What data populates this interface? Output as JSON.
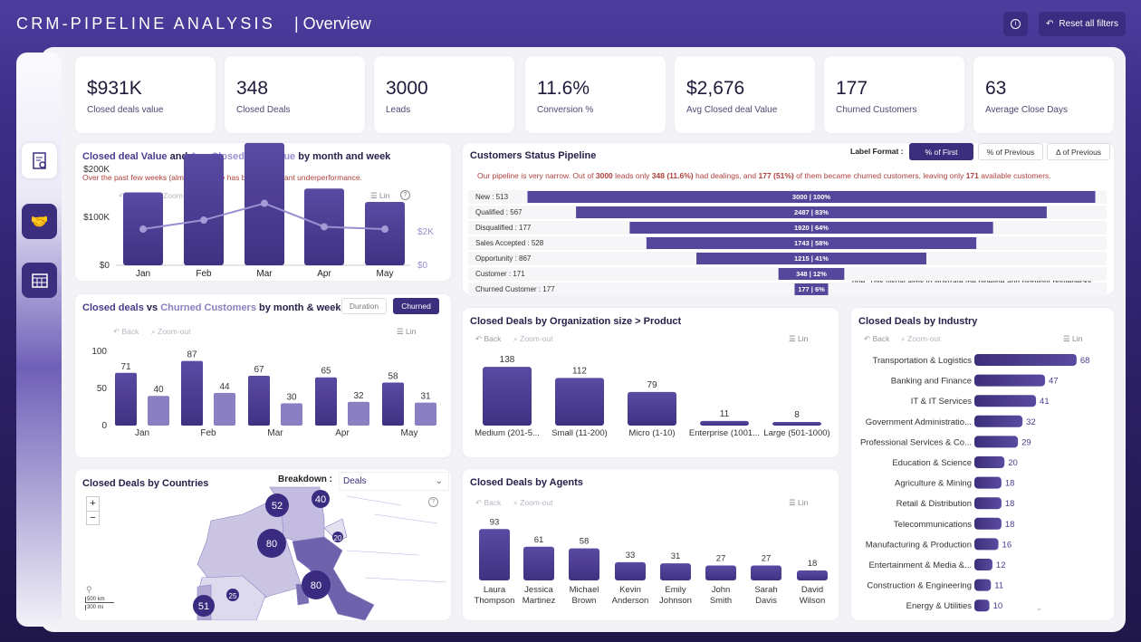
{
  "header": {
    "title": "CRM-PIPELINE ANALYSIS",
    "subtitle": "| Overview",
    "reset_label": "Reset all filters",
    "info_icon": "info-icon",
    "reset_icon": "undo-icon"
  },
  "sidebar": {
    "items": [
      {
        "icon": "report-icon",
        "active": true
      },
      {
        "icon": "handshake-icon",
        "active": false
      },
      {
        "icon": "calendar-icon",
        "active": false
      }
    ]
  },
  "kpis": [
    {
      "value": "$931K",
      "label": "Closed deals value"
    },
    {
      "value": "348",
      "label": "Closed Deals"
    },
    {
      "value": "3000",
      "label": "Leads"
    },
    {
      "value": "11.6%",
      "label": "Conversion %"
    },
    {
      "value": "$2,676",
      "label": "Avg Closed deal Value"
    },
    {
      "value": "177",
      "label": "Churned Customers"
    },
    {
      "value": "63",
      "label": "Average Close Days"
    }
  ],
  "toolbar": {
    "back": "Back",
    "zoom_out": "Zoom-out",
    "lin": "Lin",
    "help": "?"
  },
  "value_panel": {
    "title_a": "Closed deal Value",
    "title_and": " and ",
    "title_b": "Avg Closed deal value",
    "title_rest": " by month and week",
    "note": "Over the past few weeks (almost 7), there has been significant underperformance."
  },
  "churn_panel": {
    "title_a": "Closed deals",
    "title_vs": " vs ",
    "title_b": "Churned Customers",
    "title_rest": " by month & week",
    "btn_duration": "Duration",
    "btn_churned": "Churned"
  },
  "pipeline_panel": {
    "title": "Customers Status Pipeline",
    "label_format": "Label Format :",
    "formats": [
      "% of First",
      "% of Previous",
      "Δ of Previous"
    ],
    "selected_format": "% of First",
    "note_parts": [
      "Our pipeline is very narrow. Out of ",
      "3000",
      " leads only ",
      "348 (11.6%)",
      " had dealings, and  ",
      "177 (51%)",
      " of them became churned customers, leaving only ",
      "171",
      " available customers."
    ],
    "side_note": "The customer must progress through prior status levels to reach the next one. This visual aims to illustrate the pipeline and highlight bottlenecks."
  },
  "org_panel": {
    "title": "Closed Deals by Organization size > Product"
  },
  "industry_panel": {
    "title": "Closed Deals by Industry"
  },
  "map_panel": {
    "title": "Closed Deals by Countries",
    "breakdown_label": "Breakdown :",
    "breakdown_value": "Deals",
    "zoom_in": "+",
    "zoom_out": "−",
    "scale_km": "500 km",
    "scale_mi": "300 mi",
    "bubbles": [
      52,
      40,
      80,
      20,
      80,
      25,
      51
    ]
  },
  "agents_panel": {
    "title": "Closed Deals by Agents"
  },
  "colors": {
    "primary": "#4a3b8c",
    "secondary": "#9a8fd0",
    "note": "#b0403c",
    "header": "#3f3090"
  },
  "chart_data": [
    {
      "type": "bar",
      "categories": [
        "Jan",
        "Feb",
        "Mar",
        "Apr",
        "May"
      ],
      "series": [
        {
          "name": "Closed deal Value",
          "type": "bar",
          "values": [
            152000,
            232000,
            255000,
            160000,
            132000
          ]
        },
        {
          "name": "Avg Closed deal value",
          "type": "line",
          "values": [
            2160,
            2700,
            3700,
            2300,
            2160
          ]
        }
      ],
      "yticks": [
        "$0",
        "$100K",
        "$200K"
      ],
      "y2ticks": [
        "$0",
        "$2K"
      ]
    },
    {
      "type": "bar",
      "categories": [
        "Jan",
        "Feb",
        "Mar",
        "Apr",
        "May"
      ],
      "series": [
        {
          "name": "Closed deals",
          "values": [
            71,
            87,
            67,
            65,
            58
          ]
        },
        {
          "name": "Churned Customers",
          "values": [
            40,
            44,
            30,
            32,
            31
          ]
        }
      ],
      "yticks": [
        "0",
        "50",
        "100"
      ]
    },
    {
      "type": "bar",
      "orientation": "funnel",
      "categories": [
        "New : 513",
        "Qualified : 567",
        "Disqualified : 177",
        "Sales Accepted : 528",
        "Opportunity : 867",
        "Customer : 171",
        "Churned Customer : 177"
      ],
      "values": [
        3000,
        2487,
        1920,
        1743,
        1215,
        348,
        177
      ],
      "labels": [
        "3000 | 100%",
        "2487 | 83%",
        "1920 | 64%",
        "1743 | 58%",
        "1215 | 41%",
        "348 | 12%",
        "177 | 6%"
      ]
    },
    {
      "type": "bar",
      "categories": [
        "Medium (201-5...",
        "Small (11-200)",
        "Micro (1-10)",
        "Enterprise (1001...",
        "Large (501-1000)"
      ],
      "values": [
        138,
        112,
        79,
        11,
        8
      ]
    },
    {
      "type": "bar",
      "orientation": "horizontal",
      "categories": [
        "Transportation & Logistics",
        "Banking and Finance",
        "IT & IT Services",
        "Government Administratio...",
        "Professional Services & Co...",
        "Education & Science",
        "Agriculture & Mining",
        "Retail & Distribution",
        "Telecommunications",
        "Manufacturing & Production",
        "Entertainment & Media &...",
        "Construction & Engineering",
        "Energy & Utilities"
      ],
      "values": [
        68,
        47,
        41,
        32,
        29,
        20,
        18,
        18,
        18,
        16,
        12,
        11,
        10
      ]
    },
    {
      "type": "bar",
      "categories": [
        "Laura Thompson",
        "Jessica Martinez",
        "Michael Brown",
        "Kevin Anderson",
        "Emily Johnson",
        "John Smith",
        "Sarah Davis",
        "David Wilson"
      ],
      "values": [
        93,
        61,
        58,
        33,
        31,
        27,
        27,
        18
      ]
    }
  ]
}
